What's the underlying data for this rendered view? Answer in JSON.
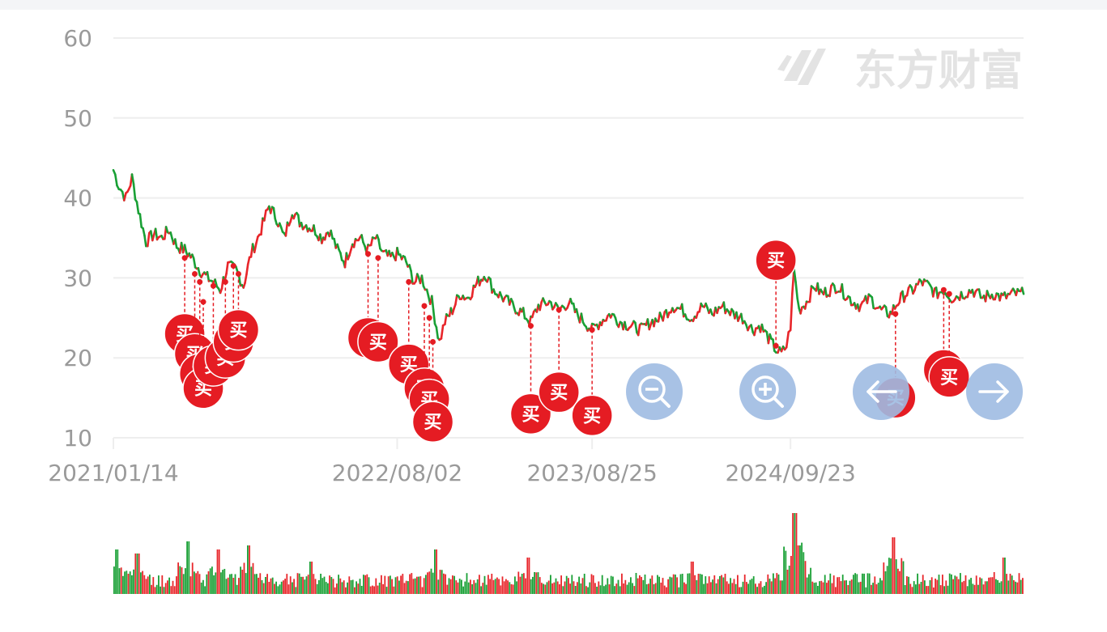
{
  "watermark": "东方财富",
  "buy_label": "买",
  "controls": {
    "zoom_out": "zoom-out-icon",
    "zoom_in": "zoom-in-icon",
    "prev": "arrow-left-icon",
    "next": "arrow-right-icon"
  },
  "colors": {
    "up": "#e8262b",
    "down": "#19a035",
    "buy_marker": "#e51c23",
    "control": "#9fbbe2",
    "grid": "#eeeeee",
    "tick": "#9a9a9a",
    "watermark": "#e3e3e3"
  },
  "chart_data": {
    "type": "line",
    "title": "",
    "xlabel": "",
    "ylabel": "",
    "ylim": [
      10,
      60
    ],
    "yticks": [
      10,
      20,
      30,
      40,
      50,
      60
    ],
    "xlim": [
      "2021/01/14",
      "2025/12/31"
    ],
    "xticks": [
      "2021/01/14",
      "2022/08/02",
      "2023/08/25",
      "2024/09/23"
    ],
    "grid": true,
    "series": [
      {
        "values_kind": "price",
        "points": [
          [
            "2021/01/14",
            43.5
          ],
          [
            "2021/01/25",
            41.5
          ],
          [
            "2021/02/08",
            40.0
          ],
          [
            "2021/02/20",
            42.5
          ],
          [
            "2021/03/05",
            38.5
          ],
          [
            "2021/03/20",
            34.5
          ],
          [
            "2021/04/05",
            35.5
          ],
          [
            "2021/04/20",
            35.0
          ],
          [
            "2021/05/05",
            36.0
          ],
          [
            "2021/05/20",
            34.0
          ],
          [
            "2021/06/05",
            33.5
          ],
          [
            "2021/06/20",
            32.5
          ],
          [
            "2021/07/05",
            31.0
          ],
          [
            "2021/07/20",
            30.0
          ],
          [
            "2021/08/01",
            29.5
          ],
          [
            "2021/08/15",
            28.5
          ],
          [
            "2021/08/30",
            31.5
          ],
          [
            "2021/09/15",
            31.0
          ],
          [
            "2021/09/30",
            29.0
          ],
          [
            "2021/10/15",
            33.0
          ],
          [
            "2021/11/01",
            35.5
          ],
          [
            "2021/11/20",
            39.0
          ],
          [
            "2021/12/05",
            37.5
          ],
          [
            "2021/12/20",
            35.0
          ],
          [
            "2022/01/05",
            38.5
          ],
          [
            "2022/01/20",
            37.0
          ],
          [
            "2022/02/05",
            36.5
          ],
          [
            "2022/02/20",
            36.0
          ],
          [
            "2022/03/05",
            35.0
          ],
          [
            "2022/03/20",
            36.0
          ],
          [
            "2022/04/05",
            33.5
          ],
          [
            "2022/04/20",
            32.0
          ],
          [
            "2022/05/05",
            34.5
          ],
          [
            "2022/05/20",
            35.0
          ],
          [
            "2022/06/05",
            33.5
          ],
          [
            "2022/06/20",
            35.0
          ],
          [
            "2022/07/05",
            33.0
          ],
          [
            "2022/07/20",
            32.5
          ],
          [
            "2022/08/02",
            33.0
          ],
          [
            "2022/08/20",
            32.0
          ],
          [
            "2022/09/05",
            29.5
          ],
          [
            "2022/09/20",
            30.0
          ],
          [
            "2022/10/10",
            27.0
          ],
          [
            "2022/10/25",
            22.0
          ],
          [
            "2022/11/05",
            24.5
          ],
          [
            "2022/11/20",
            26.0
          ],
          [
            "2022/12/05",
            28.0
          ],
          [
            "2022/12/20",
            27.5
          ],
          [
            "2023/01/10",
            29.5
          ],
          [
            "2023/01/25",
            30.5
          ],
          [
            "2023/02/10",
            28.5
          ],
          [
            "2023/03/01",
            27.5
          ],
          [
            "2023/03/20",
            26.5
          ],
          [
            "2023/04/10",
            25.5
          ],
          [
            "2023/04/25",
            24.5
          ],
          [
            "2023/05/10",
            26.5
          ],
          [
            "2023/06/01",
            27.0
          ],
          [
            "2023/06/20",
            26.0
          ],
          [
            "2023/07/10",
            27.0
          ],
          [
            "2023/07/25",
            25.5
          ],
          [
            "2023/08/10",
            24.5
          ],
          [
            "2023/08/25",
            23.5
          ],
          [
            "2023/09/10",
            24.5
          ],
          [
            "2023/10/01",
            25.5
          ],
          [
            "2023/10/20",
            24.5
          ],
          [
            "2023/11/10",
            24.0
          ],
          [
            "2023/12/01",
            23.5
          ],
          [
            "2023/12/20",
            24.5
          ],
          [
            "2024/01/10",
            25.0
          ],
          [
            "2024/02/01",
            26.5
          ],
          [
            "2024/02/20",
            26.0
          ],
          [
            "2024/03/10",
            25.0
          ],
          [
            "2024/04/01",
            26.5
          ],
          [
            "2024/04/20",
            25.5
          ],
          [
            "2024/05/10",
            26.5
          ],
          [
            "2024/06/01",
            25.5
          ],
          [
            "2024/06/20",
            25.0
          ],
          [
            "2024/07/10",
            23.5
          ],
          [
            "2024/07/25",
            24.0
          ],
          [
            "2024/08/10",
            22.5
          ],
          [
            "2024/08/25",
            21.0
          ],
          [
            "2024/09/05",
            20.5
          ],
          [
            "2024/09/15",
            21.5
          ],
          [
            "2024/09/23",
            24.0
          ],
          [
            "2024/09/30",
            31.0
          ],
          [
            "2024/10/10",
            26.0
          ],
          [
            "2024/10/25",
            27.0
          ],
          [
            "2024/11/10",
            29.0
          ],
          [
            "2024/11/25",
            28.0
          ],
          [
            "2024/12/10",
            28.5
          ],
          [
            "2024/12/25",
            29.0
          ],
          [
            "2025/01/10",
            28.0
          ],
          [
            "2025/01/25",
            27.0
          ],
          [
            "2025/02/10",
            26.5
          ],
          [
            "2025/03/01",
            27.5
          ],
          [
            "2025/03/20",
            26.0
          ],
          [
            "2025/04/10",
            25.5
          ],
          [
            "2025/04/25",
            27.0
          ],
          [
            "2025/05/10",
            28.0
          ],
          [
            "2025/05/25",
            28.5
          ],
          [
            "2025/06/10",
            29.5
          ],
          [
            "2025/06/25",
            29.0
          ],
          [
            "2025/07/10",
            28.0
          ],
          [
            "2025/07/25",
            28.5
          ],
          [
            "2025/08/10",
            27.5
          ],
          [
            "2025/09/01",
            28.0
          ],
          [
            "2025/09/20",
            28.5
          ],
          [
            "2025/10/10",
            27.5
          ],
          [
            "2025/11/01",
            28.0
          ],
          [
            "2025/11/20",
            27.5
          ],
          [
            "2025/12/10",
            28.0
          ],
          [
            "2025/12/31",
            28.0
          ]
        ]
      }
    ],
    "buy_markers": [
      {
        "date": "2021/06/05",
        "price": 32.5,
        "marker_y": 23.0
      },
      {
        "date": "2021/06/25",
        "price": 30.5,
        "marker_y": 20.5
      },
      {
        "date": "2021/07/05",
        "price": 29.5,
        "marker_y": 18.0
      },
      {
        "date": "2021/07/12",
        "price": 27.0,
        "marker_y": 16.2
      },
      {
        "date": "2021/08/01",
        "price": 29.0,
        "marker_y": 19.0
      },
      {
        "date": "2021/08/25",
        "price": 29.5,
        "marker_y": 20.0
      },
      {
        "date": "2021/09/10",
        "price": 31.5,
        "marker_y": 22.0
      },
      {
        "date": "2021/09/20",
        "price": 30.5,
        "marker_y": 23.5
      },
      {
        "date": "2022/06/05",
        "price": 33.0,
        "marker_y": 22.5
      },
      {
        "date": "2022/06/25",
        "price": 32.5,
        "marker_y": 22.0
      },
      {
        "date": "2022/08/25",
        "price": 29.5,
        "marker_y": 19.2
      },
      {
        "date": "2022/09/25",
        "price": 26.5,
        "marker_y": 16.2
      },
      {
        "date": "2022/10/05",
        "price": 25.0,
        "marker_y": 14.8
      },
      {
        "date": "2022/10/12",
        "price": 22.0,
        "marker_y": 12.0
      },
      {
        "date": "2023/04/25",
        "price": 24.0,
        "marker_y": 13.0
      },
      {
        "date": "2023/06/20",
        "price": 26.0,
        "marker_y": 15.7
      },
      {
        "date": "2023/08/25",
        "price": 23.5,
        "marker_y": 12.8
      },
      {
        "date": "2024/08/25",
        "price": 21.5,
        "marker_y": 32.2
      },
      {
        "date": "2025/04/20",
        "price": 25.5,
        "marker_y": 15.0
      },
      {
        "date": "2025/07/25",
        "price": 28.5,
        "marker_y": 18.5
      },
      {
        "date": "2025/08/05",
        "price": 28.0,
        "marker_y": 17.6
      }
    ],
    "volume": {
      "note": "relative bar heights, 0-1",
      "spikes": [
        [
          "2021/01/20",
          0.55
        ],
        [
          "2021/03/01",
          0.5
        ],
        [
          "2021/06/10",
          0.65
        ],
        [
          "2021/08/10",
          0.55
        ],
        [
          "2021/10/10",
          0.6
        ],
        [
          "2022/02/10",
          0.4
        ],
        [
          "2022/10/15",
          0.55
        ],
        [
          "2023/04/20",
          0.45
        ],
        [
          "2024/03/10",
          0.4
        ],
        [
          "2024/09/10",
          0.5
        ],
        [
          "2024/09/30",
          1.0
        ],
        [
          "2024/10/10",
          0.6
        ],
        [
          "2025/04/15",
          0.7
        ],
        [
          "2025/11/20",
          0.45
        ]
      ]
    }
  }
}
